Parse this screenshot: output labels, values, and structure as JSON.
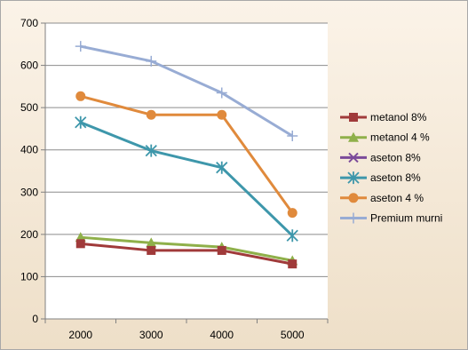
{
  "chart_data": {
    "type": "line",
    "title": "",
    "xlabel": "",
    "ylabel": "",
    "categories": [
      "2000",
      "3000",
      "4000",
      "5000"
    ],
    "ylim": [
      0,
      700
    ],
    "yticks": [
      0,
      100,
      200,
      300,
      400,
      500,
      600,
      700
    ],
    "grid": "horizontal",
    "legend_position": "right",
    "series": [
      {
        "name": "metanol 8%",
        "color": "#a03a3a",
        "marker": "square",
        "values": [
          178,
          162,
          162,
          130
        ]
      },
      {
        "name": "metanol 4 %",
        "color": "#8fb04a",
        "marker": "triangle",
        "values": [
          193,
          180,
          170,
          138
        ]
      },
      {
        "name": "aseton 8%",
        "color": "#7b4a9a",
        "marker": "x",
        "values": [
          null,
          null,
          null,
          null
        ]
      },
      {
        "name": "aseton 8%",
        "color": "#3e97ab",
        "marker": "star",
        "values": [
          465,
          398,
          358,
          197
        ]
      },
      {
        "name": "aseton  4 %",
        "color": "#e08a3c",
        "marker": "circle",
        "values": [
          527,
          483,
          483,
          251
        ]
      },
      {
        "name": "Premium murni",
        "color": "#98acd4",
        "marker": "plus",
        "values": [
          645,
          610,
          535,
          433
        ]
      }
    ]
  }
}
